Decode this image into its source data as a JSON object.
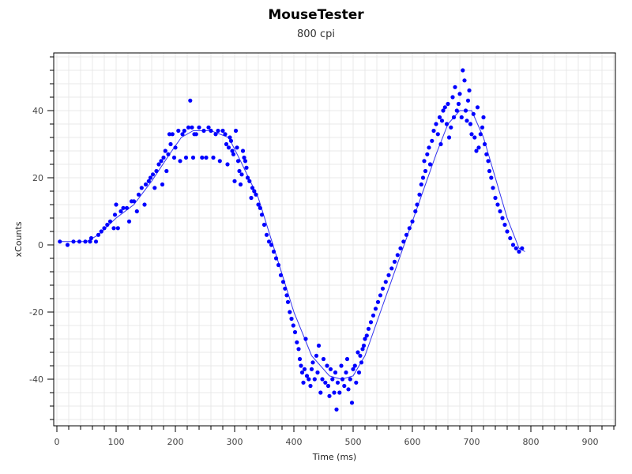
{
  "chart_data": {
    "type": "scatter",
    "title": "MouseTester",
    "subtitle": "800 cpi",
    "xlabel": "Time (ms)",
    "ylabel": "xCounts",
    "xlim": [
      -5,
      945
    ],
    "ylim": [
      -53,
      57
    ],
    "xticks": [
      0,
      100,
      200,
      300,
      400,
      500,
      600,
      700,
      800,
      900
    ],
    "yticks": [
      -40,
      -20,
      0,
      20,
      40
    ],
    "grid": true,
    "colors": {
      "points": "#0000ff",
      "line": "#3333ee",
      "grid": "#e8e8e8",
      "axis": "#000000"
    },
    "series": [
      {
        "name": "xCounts",
        "style": "points",
        "points": [
          [
            5,
            1
          ],
          [
            18,
            0
          ],
          [
            28,
            1
          ],
          [
            38,
            1
          ],
          [
            48,
            1
          ],
          [
            56,
            1
          ],
          [
            58,
            2
          ],
          [
            66,
            1
          ],
          [
            70,
            3
          ],
          [
            75,
            4
          ],
          [
            80,
            5
          ],
          [
            85,
            6
          ],
          [
            90,
            7
          ],
          [
            96,
            5
          ],
          [
            98,
            9
          ],
          [
            100,
            12
          ],
          [
            103,
            5
          ],
          [
            108,
            10
          ],
          [
            112,
            11
          ],
          [
            118,
            11
          ],
          [
            122,
            7
          ],
          [
            126,
            13
          ],
          [
            130,
            13
          ],
          [
            135,
            10
          ],
          [
            138,
            15
          ],
          [
            143,
            17
          ],
          [
            148,
            12
          ],
          [
            150,
            18
          ],
          [
            155,
            19
          ],
          [
            158,
            20
          ],
          [
            162,
            21
          ],
          [
            165,
            17
          ],
          [
            168,
            22
          ],
          [
            172,
            24
          ],
          [
            176,
            25
          ],
          [
            178,
            18
          ],
          [
            180,
            26
          ],
          [
            183,
            28
          ],
          [
            185,
            22
          ],
          [
            188,
            27
          ],
          [
            190,
            33
          ],
          [
            192,
            30
          ],
          [
            195,
            33
          ],
          [
            198,
            26
          ],
          [
            200,
            29
          ],
          [
            205,
            34
          ],
          [
            208,
            25
          ],
          [
            212,
            33
          ],
          [
            215,
            34
          ],
          [
            218,
            26
          ],
          [
            222,
            35
          ],
          [
            225,
            43
          ],
          [
            228,
            35
          ],
          [
            230,
            26
          ],
          [
            232,
            33
          ],
          [
            235,
            33
          ],
          [
            240,
            35
          ],
          [
            245,
            26
          ],
          [
            248,
            34
          ],
          [
            252,
            26
          ],
          [
            256,
            35
          ],
          [
            260,
            34
          ],
          [
            264,
            26
          ],
          [
            268,
            33
          ],
          [
            272,
            34
          ],
          [
            275,
            25
          ],
          [
            280,
            34
          ],
          [
            284,
            33
          ],
          [
            286,
            30
          ],
          [
            288,
            24
          ],
          [
            290,
            29
          ],
          [
            292,
            32
          ],
          [
            294,
            31
          ],
          [
            296,
            28
          ],
          [
            298,
            27
          ],
          [
            300,
            19
          ],
          [
            302,
            34
          ],
          [
            304,
            29
          ],
          [
            306,
            25
          ],
          [
            308,
            22
          ],
          [
            310,
            18
          ],
          [
            312,
            21
          ],
          [
            314,
            28
          ],
          [
            316,
            26
          ],
          [
            318,
            25
          ],
          [
            320,
            23
          ],
          [
            322,
            20
          ],
          [
            325,
            19
          ],
          [
            328,
            14
          ],
          [
            330,
            17
          ],
          [
            333,
            16
          ],
          [
            336,
            15
          ],
          [
            340,
            12
          ],
          [
            343,
            11
          ],
          [
            346,
            9
          ],
          [
            350,
            6
          ],
          [
            354,
            3
          ],
          [
            358,
            1
          ],
          [
            362,
            0
          ],
          [
            366,
            -2
          ],
          [
            370,
            -4
          ],
          [
            374,
            -6
          ],
          [
            378,
            -9
          ],
          [
            382,
            -11
          ],
          [
            385,
            -13
          ],
          [
            388,
            -15
          ],
          [
            390,
            -17
          ],
          [
            393,
            -20
          ],
          [
            396,
            -22
          ],
          [
            399,
            -24
          ],
          [
            402,
            -26
          ],
          [
            405,
            -29
          ],
          [
            408,
            -31
          ],
          [
            410,
            -34
          ],
          [
            412,
            -36
          ],
          [
            414,
            -38
          ],
          [
            416,
            -41
          ],
          [
            418,
            -37
          ],
          [
            420,
            -28
          ],
          [
            422,
            -39
          ],
          [
            425,
            -40
          ],
          [
            428,
            -42
          ],
          [
            430,
            -37
          ],
          [
            432,
            -35
          ],
          [
            435,
            -40
          ],
          [
            438,
            -33
          ],
          [
            440,
            -38
          ],
          [
            442,
            -30
          ],
          [
            445,
            -44
          ],
          [
            448,
            -40
          ],
          [
            450,
            -34
          ],
          [
            453,
            -41
          ],
          [
            456,
            -36
          ],
          [
            458,
            -42
          ],
          [
            460,
            -45
          ],
          [
            462,
            -37
          ],
          [
            465,
            -40
          ],
          [
            468,
            -44
          ],
          [
            470,
            -38
          ],
          [
            472,
            -49
          ],
          [
            474,
            -41
          ],
          [
            477,
            -44
          ],
          [
            480,
            -36
          ],
          [
            482,
            -40
          ],
          [
            485,
            -42
          ],
          [
            488,
            -38
          ],
          [
            490,
            -34
          ],
          [
            492,
            -43
          ],
          [
            495,
            -40
          ],
          [
            498,
            -47
          ],
          [
            500,
            -37
          ],
          [
            503,
            -36
          ],
          [
            505,
            -41
          ],
          [
            508,
            -32
          ],
          [
            510,
            -38
          ],
          [
            512,
            -33
          ],
          [
            514,
            -35
          ],
          [
            516,
            -31
          ],
          [
            518,
            -30
          ],
          [
            520,
            -28
          ],
          [
            523,
            -27
          ],
          [
            526,
            -25
          ],
          [
            530,
            -23
          ],
          [
            534,
            -21
          ],
          [
            538,
            -19
          ],
          [
            542,
            -17
          ],
          [
            546,
            -15
          ],
          [
            550,
            -13
          ],
          [
            555,
            -11
          ],
          [
            560,
            -9
          ],
          [
            565,
            -7
          ],
          [
            570,
            -5
          ],
          [
            575,
            -3
          ],
          [
            580,
            -1
          ],
          [
            585,
            1
          ],
          [
            590,
            3
          ],
          [
            595,
            5
          ],
          [
            600,
            7
          ],
          [
            605,
            10
          ],
          [
            608,
            12
          ],
          [
            612,
            15
          ],
          [
            615,
            18
          ],
          [
            618,
            20
          ],
          [
            620,
            25
          ],
          [
            622,
            22
          ],
          [
            625,
            27
          ],
          [
            628,
            29
          ],
          [
            630,
            24
          ],
          [
            633,
            31
          ],
          [
            636,
            34
          ],
          [
            640,
            36
          ],
          [
            643,
            33
          ],
          [
            646,
            38
          ],
          [
            648,
            30
          ],
          [
            650,
            37
          ],
          [
            652,
            40
          ],
          [
            655,
            41
          ],
          [
            658,
            36
          ],
          [
            660,
            42
          ],
          [
            662,
            32
          ],
          [
            665,
            35
          ],
          [
            668,
            44
          ],
          [
            670,
            38
          ],
          [
            672,
            47
          ],
          [
            675,
            40
          ],
          [
            678,
            42
          ],
          [
            680,
            45
          ],
          [
            683,
            38
          ],
          [
            685,
            52
          ],
          [
            688,
            49
          ],
          [
            690,
            40
          ],
          [
            692,
            37
          ],
          [
            694,
            43
          ],
          [
            696,
            46
          ],
          [
            698,
            36
          ],
          [
            700,
            33
          ],
          [
            703,
            39
          ],
          [
            705,
            32
          ],
          [
            708,
            28
          ],
          [
            710,
            41
          ],
          [
            712,
            29
          ],
          [
            715,
            33
          ],
          [
            718,
            35
          ],
          [
            720,
            38
          ],
          [
            722,
            30
          ],
          [
            725,
            27
          ],
          [
            728,
            25
          ],
          [
            730,
            22
          ],
          [
            733,
            20
          ],
          [
            736,
            17
          ],
          [
            740,
            14
          ],
          [
            744,
            12
          ],
          [
            748,
            10
          ],
          [
            752,
            8
          ],
          [
            756,
            6
          ],
          [
            760,
            4
          ],
          [
            765,
            2
          ],
          [
            770,
            0
          ],
          [
            775,
            -1
          ],
          [
            780,
            -2
          ],
          [
            785,
            -1
          ]
        ]
      },
      {
        "name": "xCounts (line)",
        "style": "line",
        "points": [
          [
            5,
            1
          ],
          [
            20,
            1
          ],
          [
            50,
            1
          ],
          [
            70,
            3
          ],
          [
            100,
            8
          ],
          [
            130,
            12
          ],
          [
            160,
            19
          ],
          [
            190,
            27
          ],
          [
            210,
            32
          ],
          [
            230,
            34
          ],
          [
            260,
            34
          ],
          [
            290,
            32
          ],
          [
            310,
            25
          ],
          [
            340,
            14
          ],
          [
            370,
            -3
          ],
          [
            400,
            -20
          ],
          [
            430,
            -33
          ],
          [
            460,
            -39
          ],
          [
            480,
            -40
          ],
          [
            500,
            -39
          ],
          [
            520,
            -33
          ],
          [
            550,
            -18
          ],
          [
            580,
            -3
          ],
          [
            610,
            12
          ],
          [
            640,
            27
          ],
          [
            660,
            36
          ],
          [
            680,
            40
          ],
          [
            700,
            40
          ],
          [
            720,
            32
          ],
          [
            740,
            20
          ],
          [
            760,
            8
          ],
          [
            780,
            -1
          ],
          [
            790,
            -2
          ]
        ]
      }
    ]
  }
}
